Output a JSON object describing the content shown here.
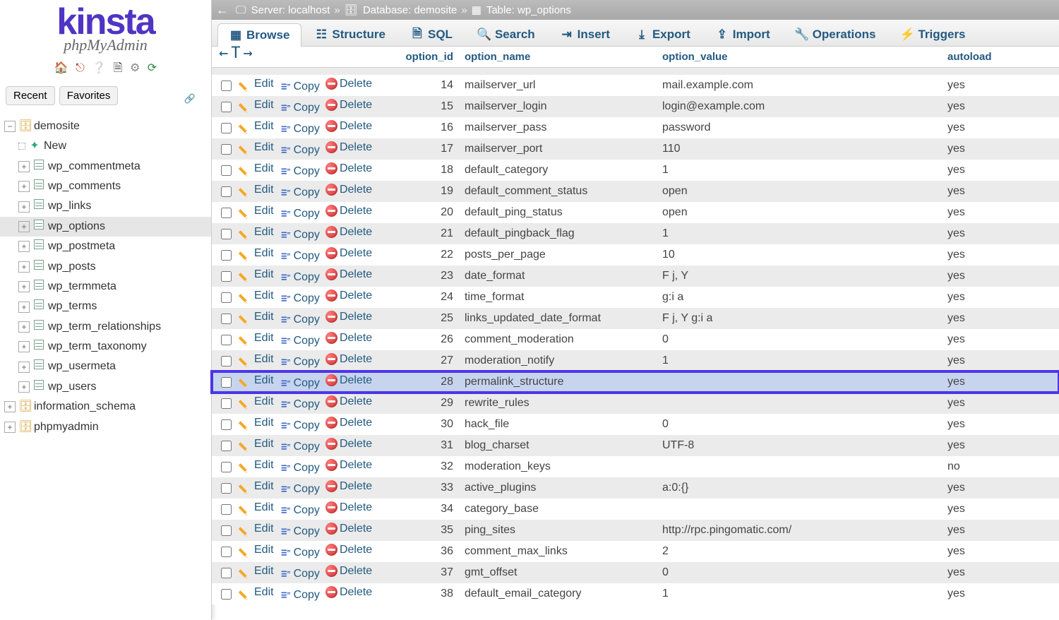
{
  "logo": {
    "line1": "KINSta",
    "line2": "phpMyAdmin"
  },
  "sidebar_icons": [
    "home-icon",
    "exit-icon",
    "help-icon",
    "doc-icon",
    "gear-icon",
    "refresh-icon"
  ],
  "recent_label": "Recent",
  "favorites_label": "Favorites",
  "tree": {
    "root_db": "demosite",
    "new_label": "New",
    "tables": [
      "wp_commentmeta",
      "wp_comments",
      "wp_links",
      "wp_options",
      "wp_postmeta",
      "wp_posts",
      "wp_termmeta",
      "wp_terms",
      "wp_term_relationships",
      "wp_term_taxonomy",
      "wp_usermeta",
      "wp_users"
    ],
    "selected_table": "wp_options",
    "other_dbs": [
      "information_schema",
      "phpmyadmin"
    ]
  },
  "breadcrumb": {
    "server_label": "Server:",
    "server_value": "localhost",
    "database_label": "Database:",
    "database_value": "demosite",
    "table_label": "Table:",
    "table_value": "wp_options"
  },
  "tabs": [
    {
      "key": "browse",
      "label": "Browse",
      "icon": "browse-icon",
      "active": true
    },
    {
      "key": "structure",
      "label": "Structure",
      "icon": "structure-icon"
    },
    {
      "key": "sql",
      "label": "SQL",
      "icon": "sql-icon"
    },
    {
      "key": "search",
      "label": "Search",
      "icon": "search-icon"
    },
    {
      "key": "insert",
      "label": "Insert",
      "icon": "insert-icon"
    },
    {
      "key": "export",
      "label": "Export",
      "icon": "export-icon"
    },
    {
      "key": "import",
      "label": "Import",
      "icon": "import-icon"
    },
    {
      "key": "operations",
      "label": "Operations",
      "icon": "operations-icon"
    },
    {
      "key": "triggers",
      "label": "Triggers",
      "icon": "triggers-icon"
    }
  ],
  "columns": {
    "option_id": "option_id",
    "option_name": "option_name",
    "option_value": "option_value",
    "autoload": "autoload"
  },
  "row_actions": {
    "edit": "Edit",
    "copy": "Copy",
    "delete": "Delete"
  },
  "highlight_id": 28,
  "rows": [
    {
      "id": 14,
      "name": "mailserver_url",
      "value": "mail.example.com",
      "autoload": "yes"
    },
    {
      "id": 15,
      "name": "mailserver_login",
      "value": "login@example.com",
      "autoload": "yes"
    },
    {
      "id": 16,
      "name": "mailserver_pass",
      "value": "password",
      "autoload": "yes"
    },
    {
      "id": 17,
      "name": "mailserver_port",
      "value": "110",
      "autoload": "yes"
    },
    {
      "id": 18,
      "name": "default_category",
      "value": "1",
      "autoload": "yes"
    },
    {
      "id": 19,
      "name": "default_comment_status",
      "value": "open",
      "autoload": "yes"
    },
    {
      "id": 20,
      "name": "default_ping_status",
      "value": "open",
      "autoload": "yes"
    },
    {
      "id": 21,
      "name": "default_pingback_flag",
      "value": "1",
      "autoload": "yes"
    },
    {
      "id": 22,
      "name": "posts_per_page",
      "value": "10",
      "autoload": "yes"
    },
    {
      "id": 23,
      "name": "date_format",
      "value": "F j, Y",
      "autoload": "yes"
    },
    {
      "id": 24,
      "name": "time_format",
      "value": "g:i a",
      "autoload": "yes"
    },
    {
      "id": 25,
      "name": "links_updated_date_format",
      "value": "F j, Y g:i a",
      "autoload": "yes"
    },
    {
      "id": 26,
      "name": "comment_moderation",
      "value": "0",
      "autoload": "yes"
    },
    {
      "id": 27,
      "name": "moderation_notify",
      "value": "1",
      "autoload": "yes"
    },
    {
      "id": 28,
      "name": "permalink_structure",
      "value": "",
      "autoload": "yes"
    },
    {
      "id": 29,
      "name": "rewrite_rules",
      "value": "",
      "autoload": "yes"
    },
    {
      "id": 30,
      "name": "hack_file",
      "value": "0",
      "autoload": "yes"
    },
    {
      "id": 31,
      "name": "blog_charset",
      "value": "UTF-8",
      "autoload": "yes"
    },
    {
      "id": 32,
      "name": "moderation_keys",
      "value": "",
      "autoload": "no"
    },
    {
      "id": 33,
      "name": "active_plugins",
      "value": "a:0:{}",
      "autoload": "yes"
    },
    {
      "id": 34,
      "name": "category_base",
      "value": "",
      "autoload": "yes"
    },
    {
      "id": 35,
      "name": "ping_sites",
      "value": "http://rpc.pingomatic.com/",
      "autoload": "yes"
    },
    {
      "id": 36,
      "name": "comment_max_links",
      "value": "2",
      "autoload": "yes"
    },
    {
      "id": 37,
      "name": "gmt_offset",
      "value": "0",
      "autoload": "yes"
    },
    {
      "id": 38,
      "name": "default_email_category",
      "value": "1",
      "autoload": "yes"
    }
  ],
  "colors": {
    "link": "#235a81",
    "brand": "#5034c4",
    "highlight_border": "#4b35e8",
    "highlight_bg": "#c7d4ee",
    "row_even": "#ebebeb",
    "row_odd": "#ffffff",
    "crumb_bg": "#b3b3b3"
  }
}
